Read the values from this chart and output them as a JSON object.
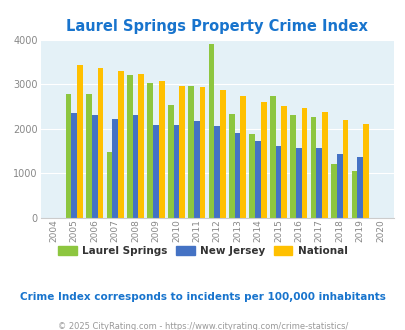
{
  "title": "Laurel Springs Property Crime Index",
  "years": [
    2004,
    2005,
    2006,
    2007,
    2008,
    2009,
    2010,
    2011,
    2012,
    2013,
    2014,
    2015,
    2016,
    2017,
    2018,
    2019,
    2020
  ],
  "laurel_springs": [
    null,
    2780,
    2780,
    1480,
    3200,
    3020,
    2540,
    2960,
    3900,
    2340,
    1880,
    2730,
    2300,
    2260,
    1200,
    1040,
    null
  ],
  "new_jersey": [
    null,
    2360,
    2300,
    2210,
    2310,
    2080,
    2090,
    2170,
    2060,
    1900,
    1720,
    1620,
    1560,
    1560,
    1430,
    1360,
    null
  ],
  "national": [
    null,
    3440,
    3360,
    3300,
    3230,
    3060,
    2960,
    2940,
    2870,
    2730,
    2600,
    2510,
    2460,
    2380,
    2190,
    2110,
    null
  ],
  "colors": {
    "laurel_springs": "#8DC63F",
    "new_jersey": "#4472C4",
    "national": "#FFC000"
  },
  "ylim": [
    0,
    4000
  ],
  "yticks": [
    0,
    1000,
    2000,
    3000,
    4000
  ],
  "background_color": "#E4F1F7",
  "subtitle": "Crime Index corresponds to incidents per 100,000 inhabitants",
  "footer": "© 2025 CityRating.com - https://www.cityrating.com/crime-statistics/",
  "title_color": "#1874CD",
  "subtitle_color": "#1874CD",
  "footer_color": "#999999",
  "legend_labels": [
    "Laurel Springs",
    "New Jersey",
    "National"
  ],
  "bar_width": 0.28
}
